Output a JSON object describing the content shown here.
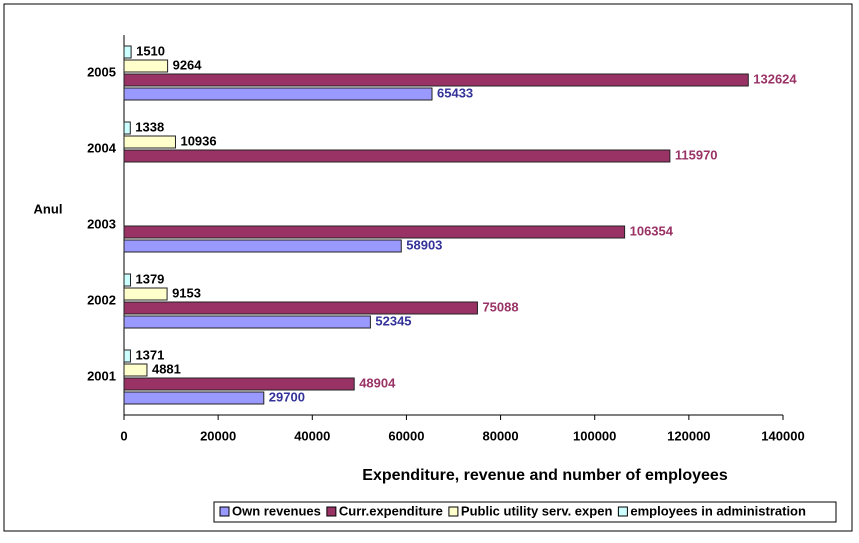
{
  "chart_data": {
    "type": "hbar",
    "title": "Expenditure, revenue and number of employees",
    "y_axis_label": "Anul",
    "categories": [
      "2001",
      "2002",
      "2003",
      "2004",
      "2005"
    ],
    "series": [
      {
        "name": "Own revenues",
        "color": "#9999ff",
        "label_color": "#333399",
        "values": [
          29700,
          52345,
          58903,
          null,
          65433
        ]
      },
      {
        "name": "Curr.expenditure",
        "color": "#993366",
        "label_color": "#993366",
        "values": [
          48904,
          75088,
          106354,
          115970,
          132624
        ]
      },
      {
        "name": "Public utility serv. expen",
        "color": "#ffffcc",
        "label_color": "#000000",
        "values": [
          4881,
          9153,
          null,
          10936,
          9264
        ]
      },
      {
        "name": "employees in administration",
        "color": "#ccffff",
        "label_color": "#000000",
        "values": [
          1371,
          1379,
          null,
          1338,
          1510
        ]
      }
    ],
    "xlim": [
      0,
      140000
    ],
    "xticks": [
      0,
      20000,
      40000,
      60000,
      80000,
      100000,
      120000,
      140000
    ],
    "legend": "bottom"
  }
}
